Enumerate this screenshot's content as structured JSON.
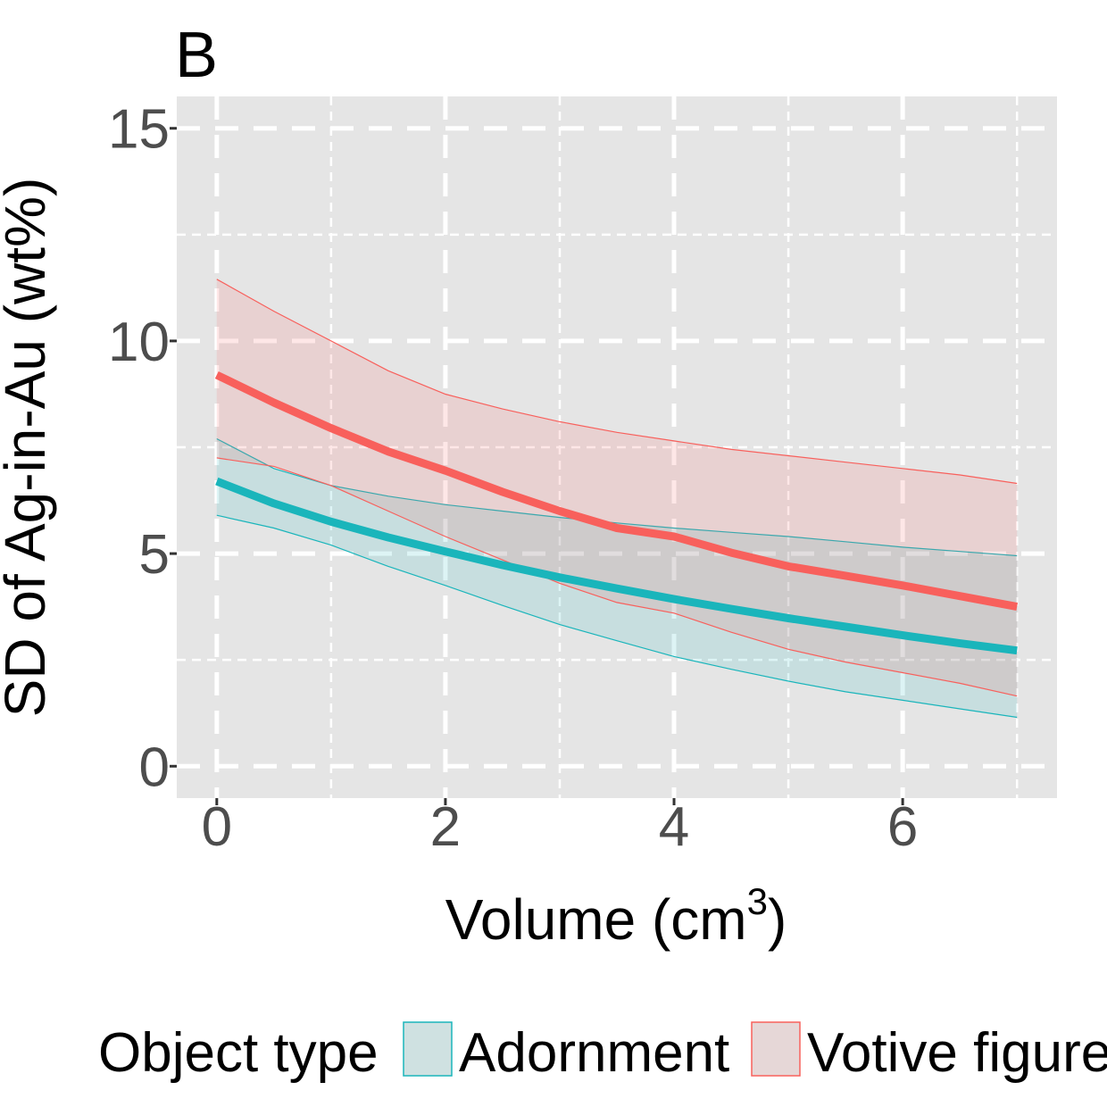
{
  "chart_data": {
    "type": "line",
    "panel_label": "B",
    "xlabel": "Volume (cm",
    "xlabel_superscript": "3",
    "xlabel_suffix": ")",
    "ylabel": "SD of Ag-in-Au (wt%)",
    "xlim": [
      -0.35,
      7.35
    ],
    "ylim": [
      -0.75,
      15.75
    ],
    "x_ticks": [
      0,
      2,
      4,
      6
    ],
    "x_tick_labels": [
      "0",
      "2",
      "4",
      "6"
    ],
    "y_ticks": [
      0,
      5,
      10,
      15
    ],
    "y_tick_labels": [
      "0",
      "5",
      "10",
      "15"
    ],
    "x_minor_ticks": [
      1,
      3,
      5,
      7
    ],
    "y_minor_ticks": [
      2.5,
      7.5,
      12.5
    ],
    "grid": true,
    "grid_style": "dashed",
    "legend": {
      "position": "bottom",
      "title": "Object type",
      "entries": [
        "Adornment",
        "Votive figure"
      ]
    },
    "series": [
      {
        "name": "Adornment",
        "color": "#1ab5bb",
        "fill": "#cfe1e1",
        "x": [
          0,
          0.5,
          1,
          1.5,
          2,
          2.5,
          3,
          3.5,
          4,
          4.5,
          5,
          5.5,
          6,
          6.5,
          7
        ],
        "y": [
          6.7,
          6.18,
          5.75,
          5.38,
          5.05,
          4.73,
          4.44,
          4.18,
          3.93,
          3.7,
          3.48,
          3.28,
          3.08,
          2.89,
          2.72
        ],
        "lower": [
          5.9,
          5.6,
          5.2,
          4.7,
          4.25,
          3.78,
          3.33,
          2.95,
          2.58,
          2.28,
          2.0,
          1.75,
          1.55,
          1.35,
          1.15
        ],
        "upper": [
          7.7,
          7.0,
          6.6,
          6.35,
          6.15,
          6.0,
          5.85,
          5.72,
          5.6,
          5.5,
          5.4,
          5.28,
          5.15,
          5.05,
          4.95
        ]
      },
      {
        "name": "Votive figure",
        "color": "#f8605c",
        "fill": "#e6d7d7",
        "x": [
          0,
          0.5,
          1,
          1.5,
          2,
          2.5,
          3,
          3.5,
          4,
          4.5,
          5,
          5.5,
          6,
          6.5,
          7
        ],
        "y": [
          9.2,
          8.55,
          7.95,
          7.4,
          6.95,
          6.45,
          6.0,
          5.6,
          5.4,
          5.02,
          4.7,
          4.48,
          4.25,
          4.0,
          3.75
        ],
        "lower": [
          7.25,
          7.05,
          6.6,
          6.0,
          5.4,
          4.85,
          4.3,
          3.85,
          3.6,
          3.15,
          2.75,
          2.45,
          2.2,
          1.95,
          1.65
        ],
        "upper": [
          11.45,
          10.7,
          10.0,
          9.3,
          8.75,
          8.4,
          8.1,
          7.85,
          7.65,
          7.45,
          7.3,
          7.15,
          7.0,
          6.85,
          6.65
        ]
      }
    ]
  }
}
